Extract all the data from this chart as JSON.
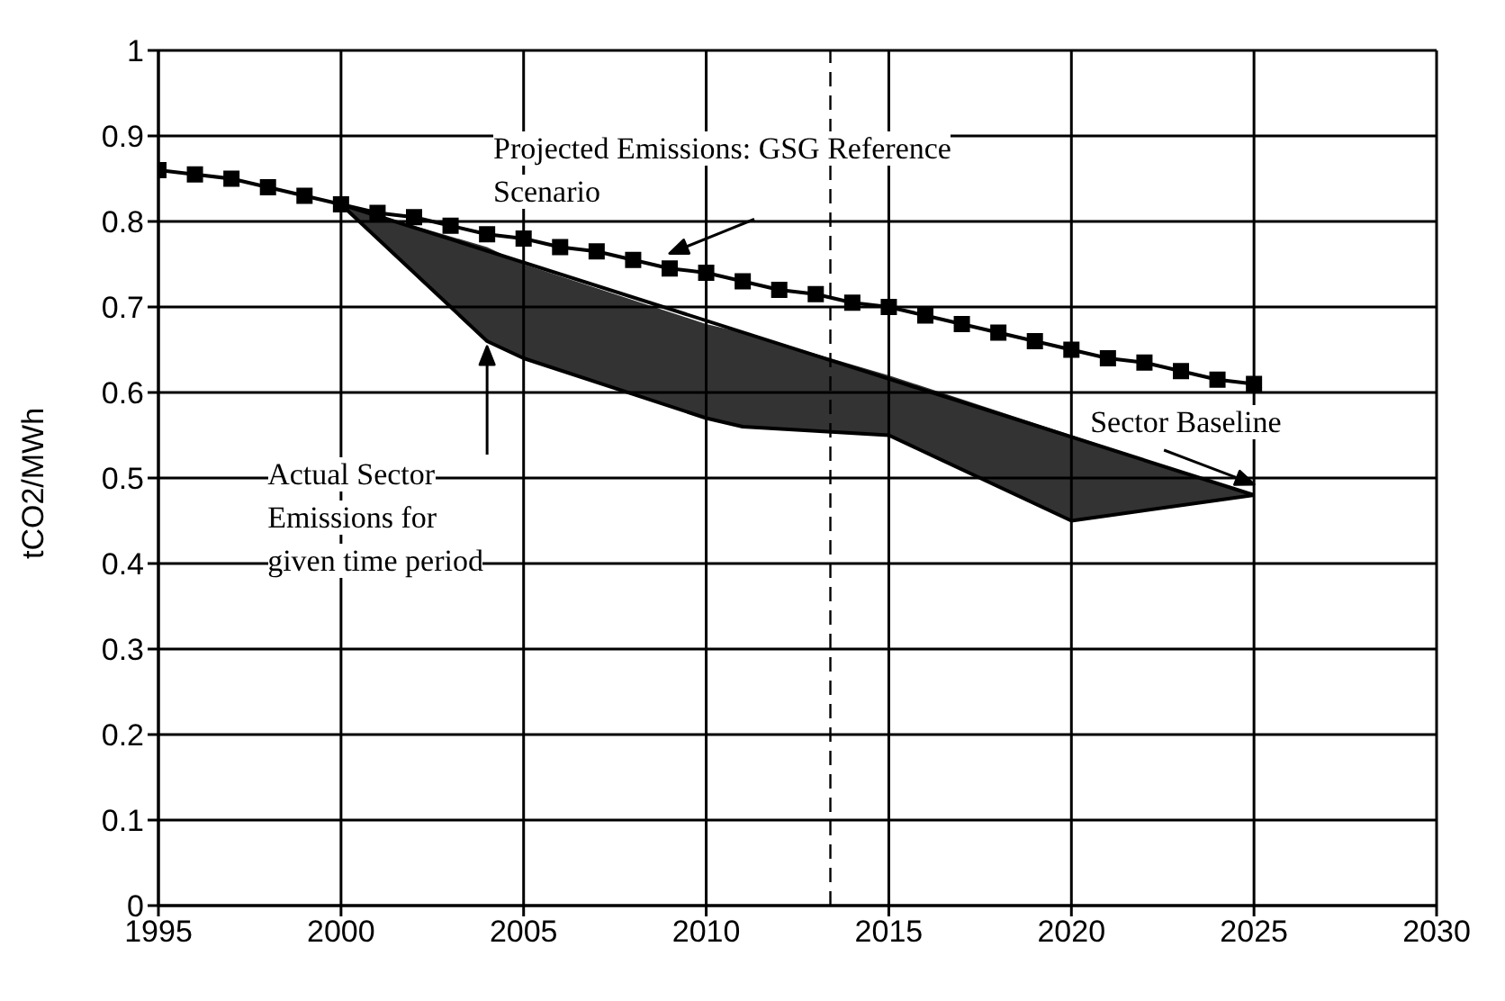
{
  "chart_data": {
    "type": "line",
    "ylabel": "tCO2/MWh",
    "xlim": [
      1995,
      2030
    ],
    "xticks": [
      1995,
      2000,
      2005,
      2010,
      2015,
      2020,
      2025,
      2030
    ],
    "ylim": [
      0,
      1
    ],
    "yticks": [
      0,
      0.1,
      0.2,
      0.3,
      0.4,
      0.5,
      0.6,
      0.7,
      0.8,
      0.9,
      1
    ],
    "grid": true,
    "series": [
      {
        "color": "#000000",
        "marker": "square",
        "x": [
          1995,
          1996,
          1997,
          1998,
          1999,
          2000,
          2001,
          2002,
          2003,
          2004,
          2005,
          2006,
          2007,
          2008,
          2009,
          2010,
          2011,
          2012,
          2013,
          2014,
          2015,
          2016,
          2017,
          2018,
          2019,
          2020,
          2021,
          2022,
          2023,
          2024,
          2025
        ],
        "values": [
          0.86,
          0.855,
          0.85,
          0.84,
          0.83,
          0.82,
          0.81,
          0.805,
          0.795,
          0.785,
          0.78,
          0.77,
          0.765,
          0.755,
          0.745,
          0.74,
          0.73,
          0.72,
          0.715,
          0.705,
          0.7,
          0.69,
          0.68,
          0.67,
          0.66,
          0.65,
          0.64,
          0.635,
          0.625,
          0.615,
          0.61
        ]
      },
      {
        "type": "line",
        "color": "#000000",
        "marker": "none",
        "x": [
          2000,
          2025
        ],
        "values": [
          0.82,
          0.48
        ]
      },
      {
        "type": "line",
        "color": "#000000",
        "marker": "none",
        "x": [
          2000,
          2004,
          2005,
          2010,
          2011,
          2015,
          2020,
          2025
        ],
        "values": [
          0.82,
          0.66,
          0.64,
          0.57,
          0.56,
          0.55,
          0.45,
          0.48
        ],
        "lower": [
          0.82,
          0.66,
          0.64,
          0.57,
          0.56,
          0.55,
          0.45,
          0.48
        ],
        "upper": [
          0.82,
          0.77,
          0.75,
          0.68,
          0.67,
          0.62,
          0.55,
          0.48
        ]
      }
    ],
    "ref_lines": [
      {
        "axis": "x",
        "value": 2013.4,
        "line_style": "dashed",
        "color": "#000000"
      }
    ],
    "annotations": [
      {
        "text": "Projected Emissions: GSG Reference Scenario",
        "x": 2009,
        "y": 0.75
      },
      "Actual Sector Emissions for given time period",
      {
        "text": "Sector Baseline",
        "x": 2025,
        "y": 0.48
      }
    ]
  }
}
